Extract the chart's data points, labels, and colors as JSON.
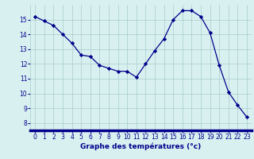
{
  "hours": [
    0,
    1,
    2,
    3,
    4,
    5,
    6,
    7,
    8,
    9,
    10,
    11,
    12,
    13,
    14,
    15,
    16,
    17,
    18,
    19,
    20,
    21,
    22,
    23
  ],
  "temperatures": [
    15.2,
    14.9,
    14.6,
    14.0,
    13.4,
    12.6,
    12.5,
    11.9,
    11.7,
    11.5,
    11.5,
    11.1,
    12.0,
    12.9,
    13.7,
    15.0,
    15.6,
    15.6,
    15.2,
    14.1,
    11.9,
    10.1,
    9.2,
    8.4
  ],
  "line_color": "#00008B",
  "marker": "D",
  "marker_size": 2.2,
  "bg_color": "#D8F0F0",
  "grid_color": "#AACCCC",
  "xlabel": "Graphe des températures (°c)",
  "xlabel_color": "#00008B",
  "tick_color": "#00008B",
  "ylim": [
    7.5,
    16.0
  ],
  "xlim": [
    -0.5,
    23.5
  ],
  "yticks": [
    8,
    9,
    10,
    11,
    12,
    13,
    14,
    15
  ],
  "xticks": [
    0,
    1,
    2,
    3,
    4,
    5,
    6,
    7,
    8,
    9,
    10,
    11,
    12,
    13,
    14,
    15,
    16,
    17,
    18,
    19,
    20,
    21,
    22,
    23
  ],
  "tick_fontsize": 5.5,
  "xlabel_fontsize": 6.5
}
